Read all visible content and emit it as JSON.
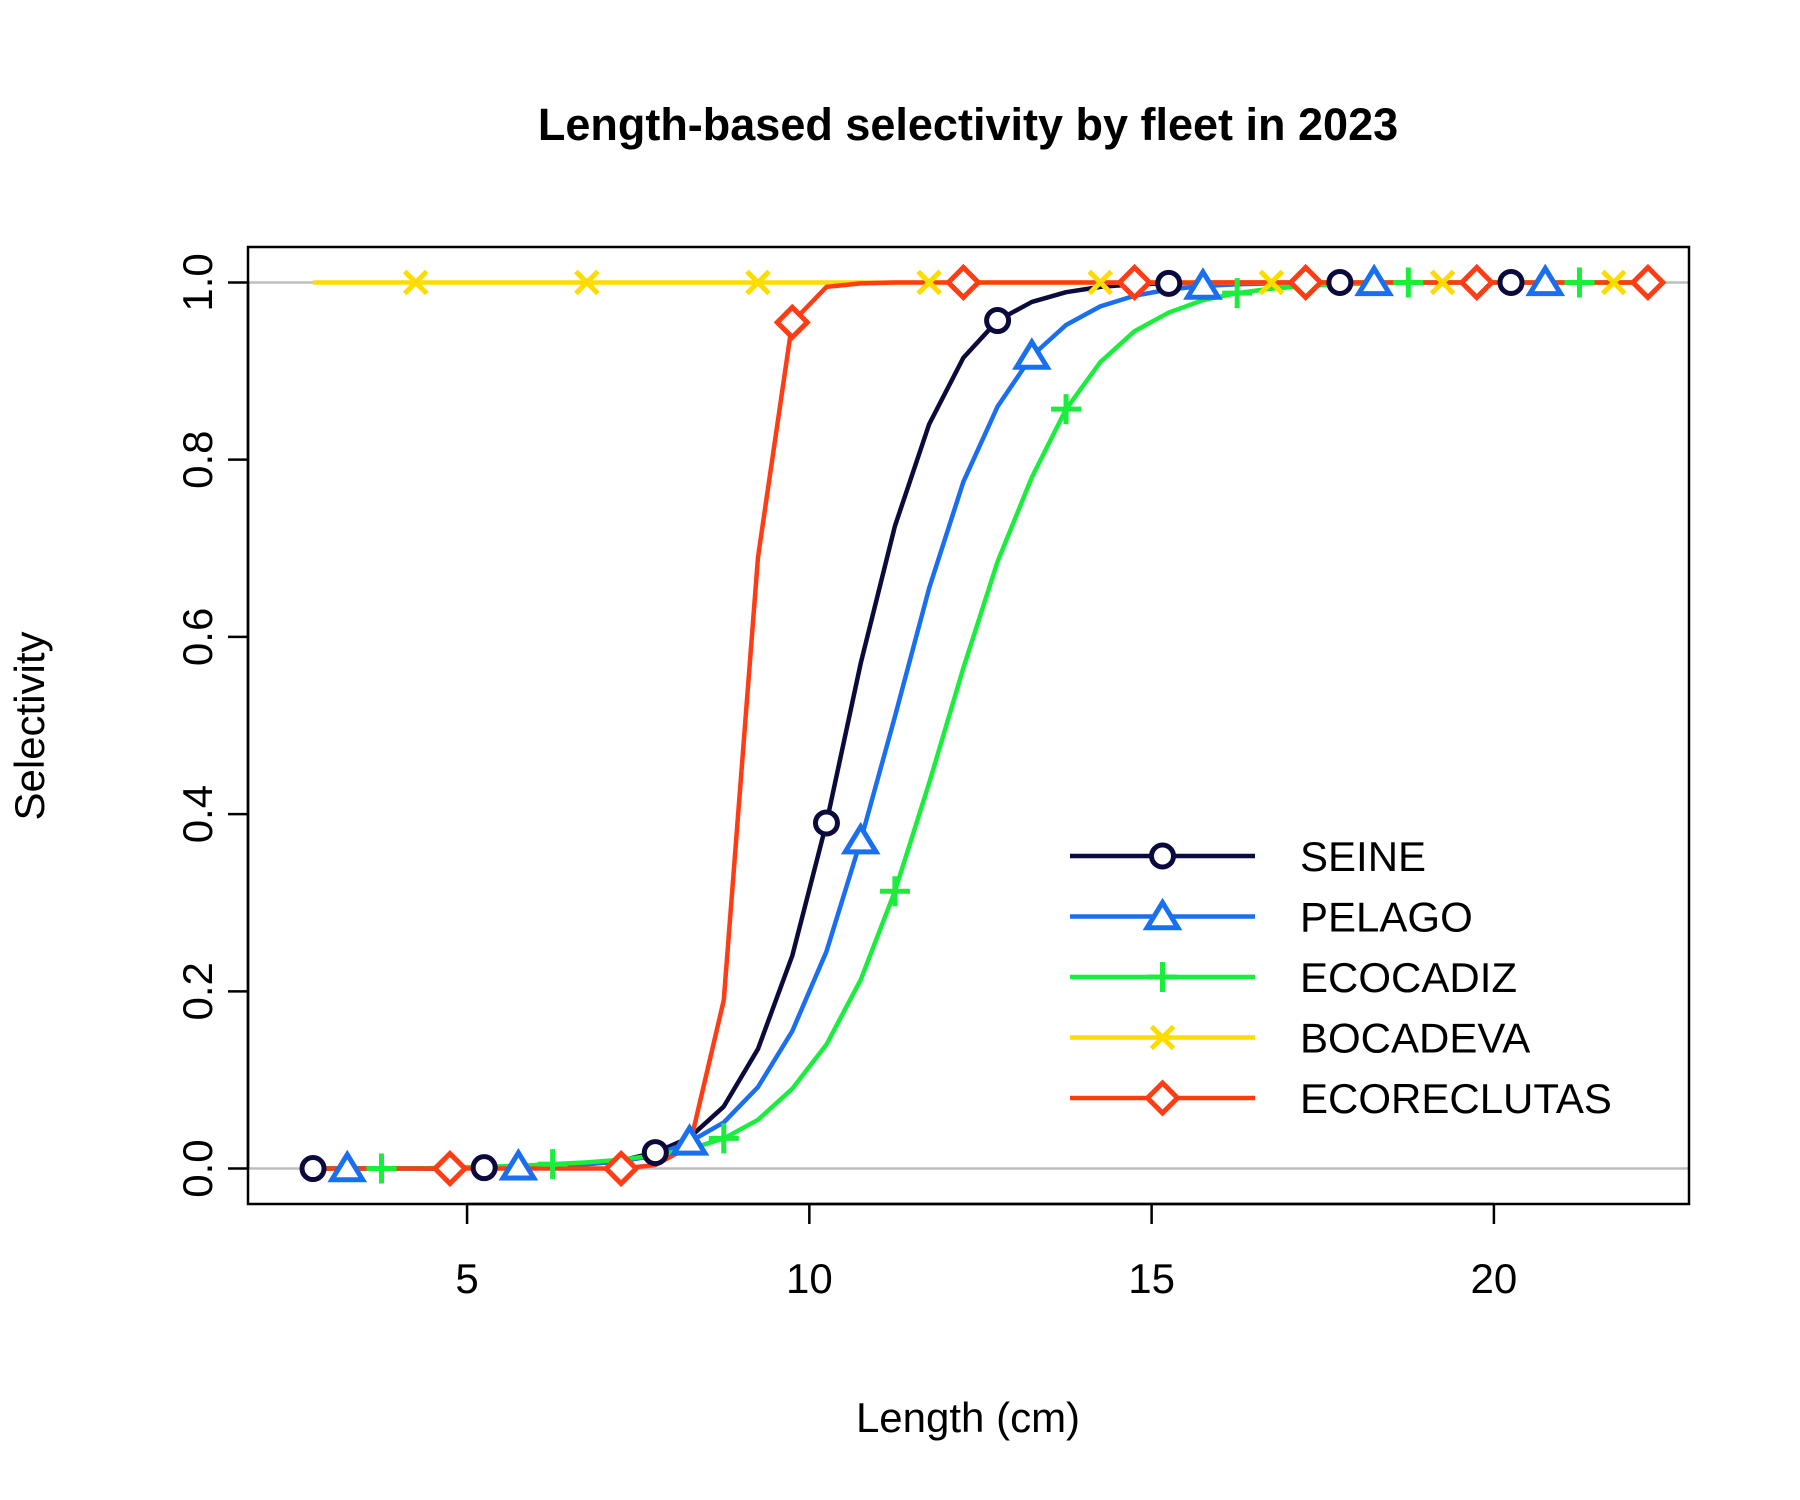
{
  "chart_data": {
    "type": "line",
    "title": "Length-based selectivity by fleet in 2023",
    "xlabel": "Length (cm)",
    "ylabel": "Selectivity",
    "xlim": [
      1.8,
      22.85
    ],
    "ylim": [
      -0.04,
      1.04
    ],
    "xticks": [
      5,
      10,
      15,
      20
    ],
    "yticks": [
      0.0,
      0.2,
      0.4,
      0.6,
      0.8,
      1.0
    ],
    "xtick_labels": [
      "5",
      "10",
      "15",
      "20"
    ],
    "ytick_labels": [
      "0.0",
      "0.2",
      "0.4",
      "0.6",
      "0.8",
      "1.0"
    ],
    "grid": "horizontal lines at 0 and 1",
    "legend_position": "bottom-right",
    "x": [
      2.75,
      3.25,
      3.75,
      4.25,
      4.75,
      5.25,
      5.75,
      6.25,
      6.75,
      7.25,
      7.75,
      8.25,
      8.75,
      9.25,
      9.75,
      10.25,
      10.75,
      11.25,
      11.75,
      12.25,
      12.75,
      13.25,
      13.75,
      14.25,
      14.75,
      15.25,
      15.75,
      16.25,
      16.75,
      17.25,
      17.75,
      18.25,
      18.75,
      19.25,
      19.75,
      20.25,
      20.75,
      21.25,
      21.75,
      22.25
    ],
    "series": [
      {
        "name": "SEINE",
        "color": "#0a0a3c",
        "marker": "circle",
        "marker_offset": 0,
        "values": [
          0,
          0,
          0,
          0,
          0,
          0.001,
          0.002,
          0.003,
          0.005,
          0.009,
          0.018,
          0.035,
          0.07,
          0.135,
          0.24,
          0.39,
          0.57,
          0.725,
          0.84,
          0.915,
          0.957,
          0.978,
          0.989,
          0.995,
          0.998,
          0.999,
          1,
          1,
          1,
          1,
          1,
          1,
          1,
          1,
          1,
          1,
          1,
          1,
          1,
          1
        ]
      },
      {
        "name": "PELAGO",
        "color": "#1a6ef0",
        "marker": "triangle",
        "marker_offset": 1,
        "values": [
          0,
          0,
          0,
          0,
          0,
          0.001,
          0.002,
          0.003,
          0.005,
          0.008,
          0.015,
          0.03,
          0.052,
          0.092,
          0.155,
          0.245,
          0.37,
          0.51,
          0.655,
          0.775,
          0.86,
          0.917,
          0.952,
          0.973,
          0.985,
          0.992,
          0.996,
          0.998,
          0.999,
          1,
          1,
          1,
          1,
          1,
          1,
          1,
          1,
          1,
          1,
          1
        ]
      },
      {
        "name": "ECOCADIZ",
        "color": "#1aee3c",
        "marker": "plus",
        "marker_offset": 2,
        "values": [
          0,
          0,
          0,
          0,
          0.001,
          0.002,
          0.003,
          0.005,
          0.007,
          0.01,
          0.015,
          0.022,
          0.034,
          0.055,
          0.09,
          0.14,
          0.213,
          0.313,
          0.435,
          0.565,
          0.685,
          0.78,
          0.857,
          0.91,
          0.945,
          0.966,
          0.98,
          0.988,
          0.993,
          0.996,
          0.998,
          0.999,
          1,
          1,
          1,
          1,
          1,
          1,
          1,
          1
        ]
      },
      {
        "name": "BOCADEVA",
        "color": "#ffdc00",
        "marker": "cross",
        "marker_offset": 3,
        "values": [
          1,
          1,
          1,
          1,
          1,
          1,
          1,
          1,
          1,
          1,
          1,
          1,
          1,
          1,
          1,
          1,
          1,
          1,
          1,
          1,
          1,
          1,
          1,
          1,
          1,
          1,
          1,
          1,
          1,
          1,
          1,
          1,
          1,
          1,
          1,
          1,
          1,
          1,
          1,
          1
        ]
      },
      {
        "name": "ECORECLUTAS",
        "color": "#ff3c14",
        "marker": "diamond",
        "marker_offset": 4,
        "values": [
          0,
          0,
          0,
          0,
          0,
          0,
          0,
          0,
          0,
          0,
          0.004,
          0.025,
          0.19,
          0.69,
          0.955,
          0.995,
          0.999,
          1,
          1,
          1,
          1,
          1,
          1,
          1,
          1,
          1,
          1,
          1,
          1,
          1,
          1,
          1,
          1,
          1,
          1,
          1,
          1,
          1,
          1,
          1
        ]
      }
    ]
  }
}
